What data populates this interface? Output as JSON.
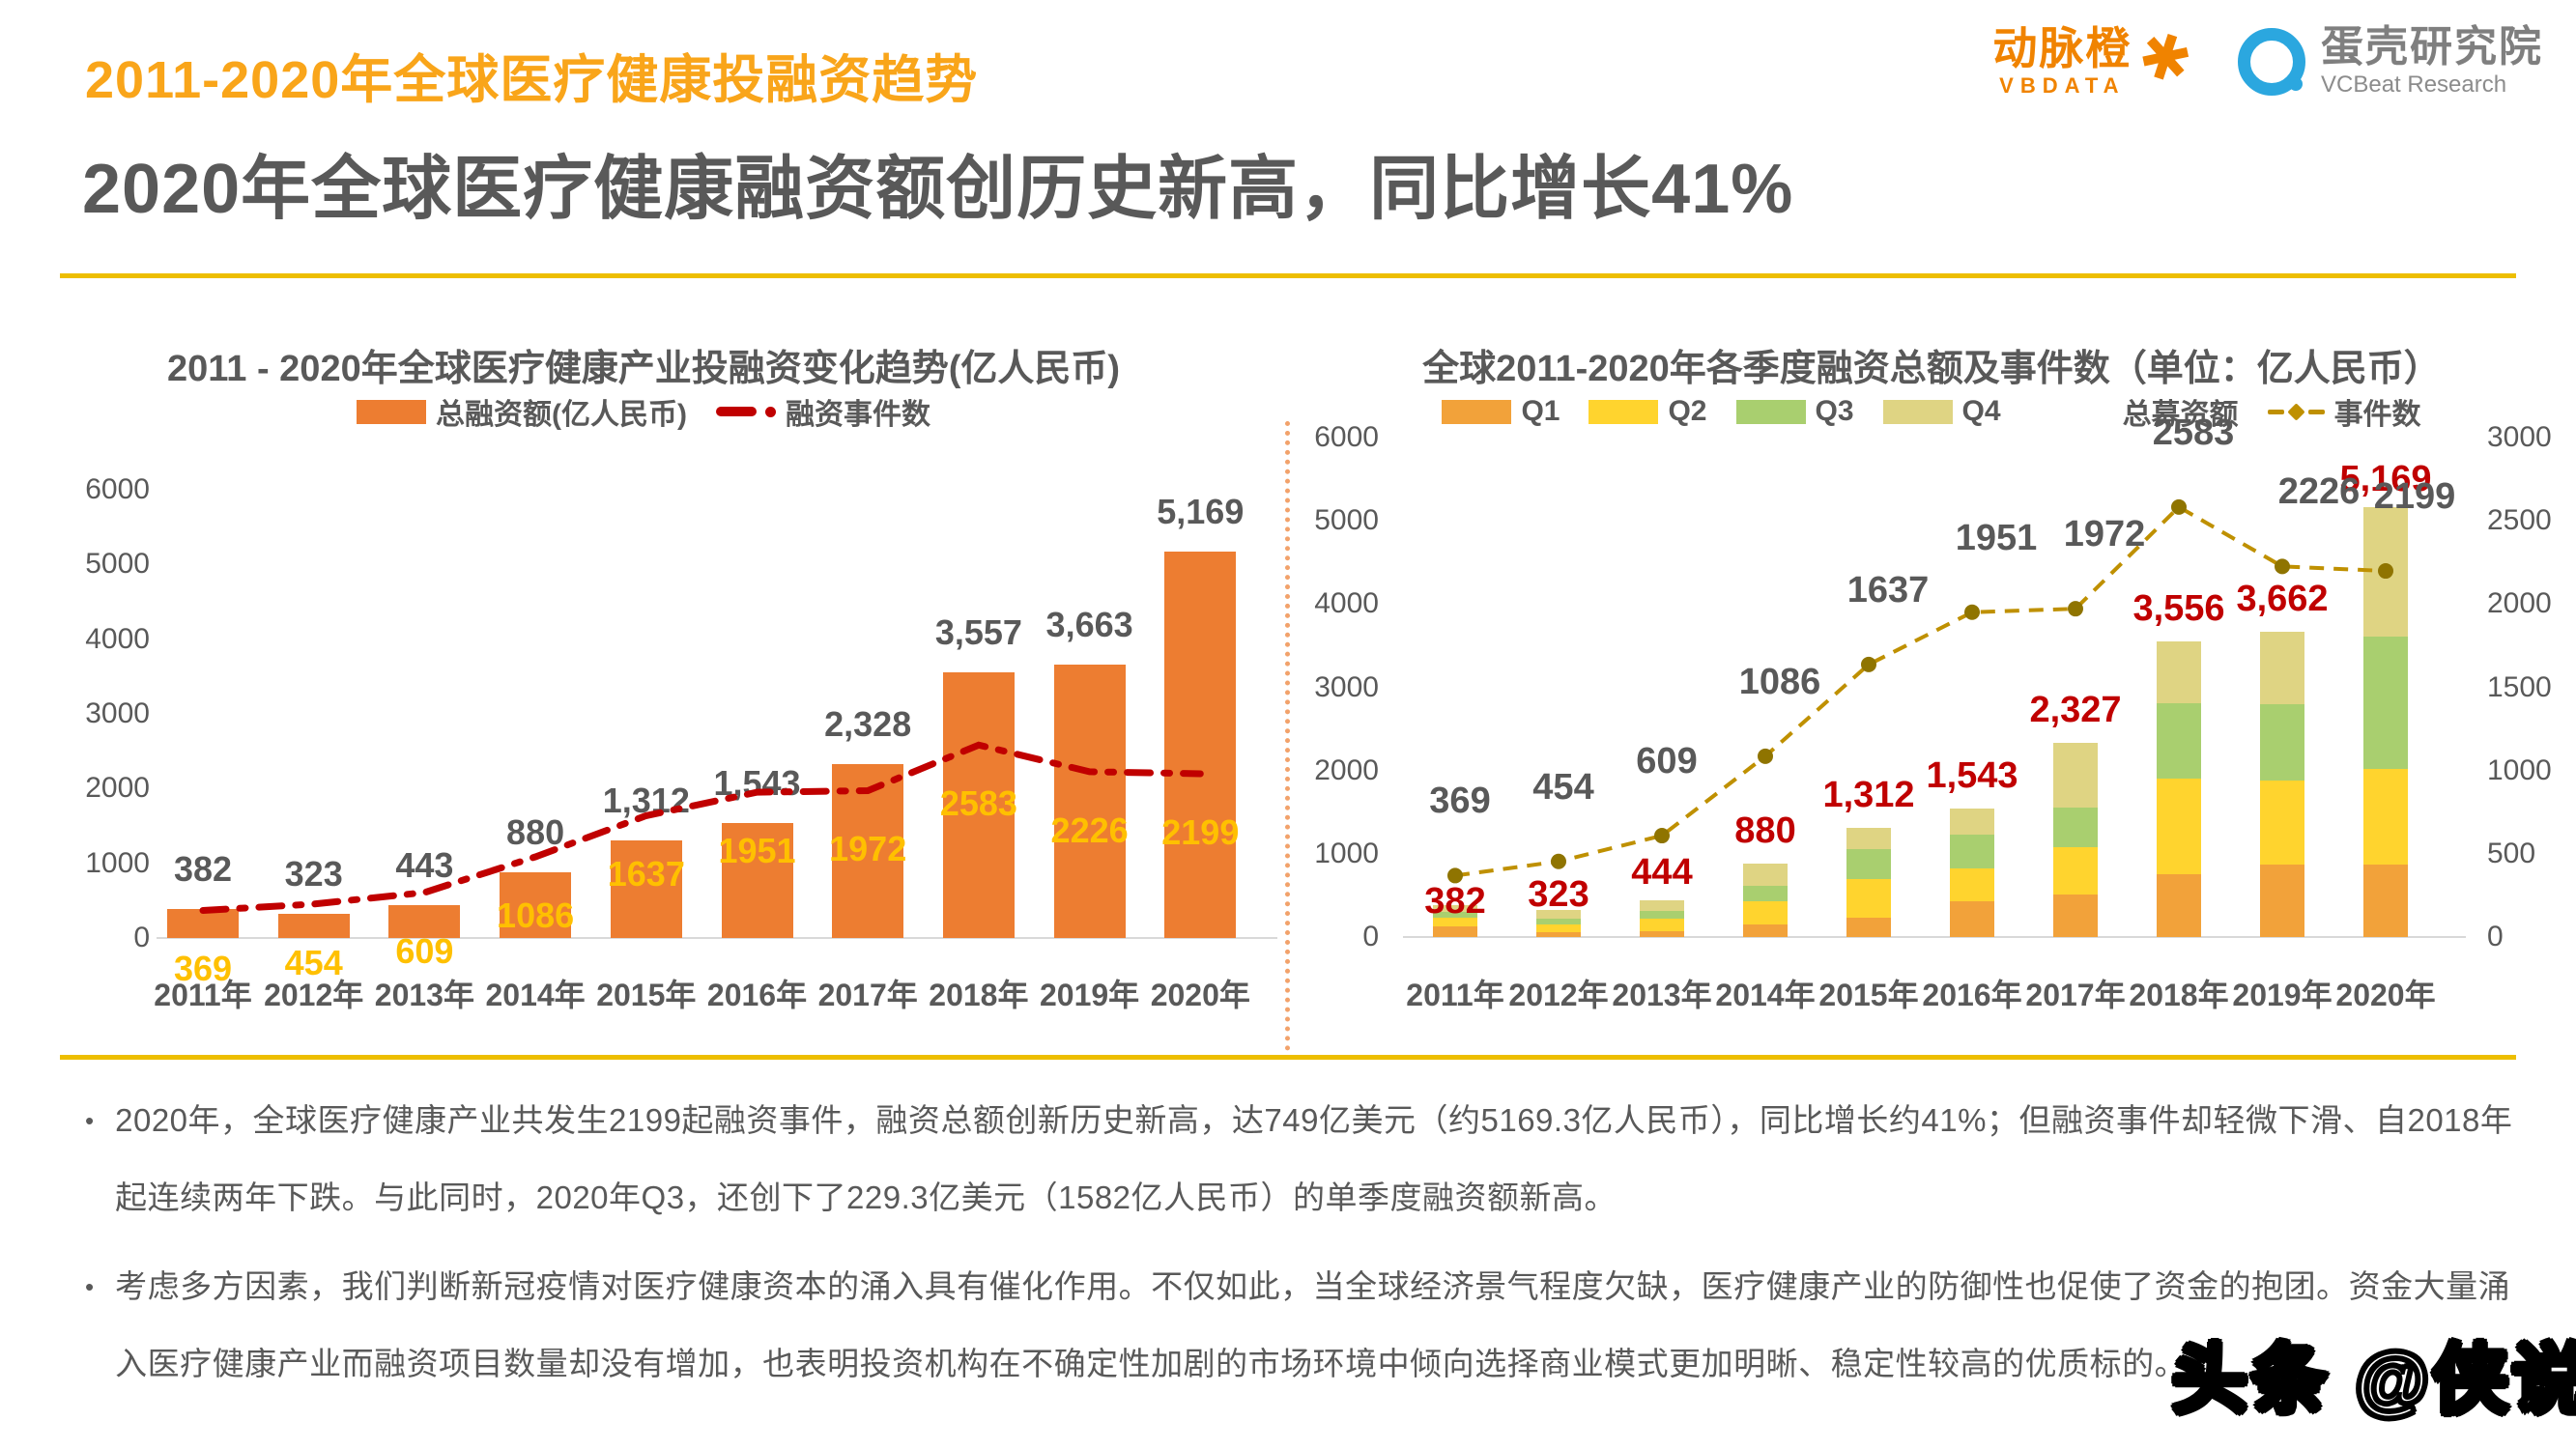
{
  "page": {
    "kicker": "2011-2020年全球医疗健康投融资趋势",
    "headline": "2020年全球医疗健康融资额创历史新高，同比增长41%",
    "watermark": "头条 @侠说"
  },
  "logos": {
    "vbdata": {
      "cn": "动脉橙",
      "en": "VBDATA"
    },
    "vcbeat": {
      "cn": "蛋壳研究院",
      "en": "VCBeat Research"
    }
  },
  "bullets": [
    "2020年，全球医疗健康产业共发生2199起融资事件，融资总额创新历史新高，达749亿美元（约5169.3亿人民币），同比增长约41%；但融资事件却轻微下滑、自2018年起连续两年下跌。与此同时，2020年Q3，还创下了229.3亿美元（1582亿人民币）的单季度融资额新高。",
    "考虑多方因素，我们判断新冠疫情对医疗健康资本的涌入具有催化作用。不仅如此，当全球经济景气程度欠缺，医疗健康产业的防御性也促使了资金的抱团。资金大量涌入医疗健康产业而融资项目数量却没有增加，也表明投资机构在不确定性加剧的市场环境中倾向选择商业模式更加明晰、稳定性较高的优质标的。"
  ],
  "colors": {
    "kicker_orange": "#F9A51A",
    "gold_rule": "#EDBE00",
    "text_gray": "#595959",
    "bar_orange": "#ED7D31",
    "line_red": "#C00000",
    "label_yellow": "#FFC000",
    "q1_orange": "#F2A23A",
    "q2_yellow": "#FFD42E",
    "q3_green": "#A9CF6F",
    "q4_khaki": "#DFD483",
    "line_olive": "#BF9000",
    "logo_orange": "#F08300",
    "logo_blue": "#2BA7DF"
  },
  "chart_data": [
    {
      "type": "bar",
      "title": "2011 - 2020年全球医疗健康产业投融资变化趋势(亿人民币)",
      "categories": [
        "2011年",
        "2012年",
        "2013年",
        "2014年",
        "2015年",
        "2016年",
        "2017年",
        "2018年",
        "2019年",
        "2020年"
      ],
      "ylim": [
        0,
        6000
      ],
      "ytick_step": 1000,
      "grid": false,
      "legend_position": "top",
      "series": [
        {
          "name": "总融资额(亿人民币)",
          "type": "bar",
          "color": "#ED7D31",
          "label_color": "#595959",
          "values": [
            382,
            323,
            443,
            880,
            1312,
            1543,
            2328,
            3557,
            3663,
            5169
          ],
          "labels": [
            "382",
            "323",
            "443",
            "880",
            "1,312",
            "1,543",
            "2,328",
            "3,557",
            "3,663",
            "5,169"
          ]
        },
        {
          "name": "融资事件数",
          "type": "line",
          "style": "dash-dot",
          "color": "#C00000",
          "label_color": "#FFC000",
          "values": [
            369,
            454,
            609,
            1086,
            1637,
            1951,
            1972,
            2583,
            2226,
            2199
          ],
          "labels": [
            "369",
            "454",
            "609",
            "1086",
            "1637",
            "1951",
            "1972",
            "2583",
            "2226",
            "2199"
          ]
        }
      ]
    },
    {
      "type": "stacked-bar",
      "title": "全球2011-2020年各季度融资总额及事件数（单位：亿人民币）",
      "categories": [
        "2011年",
        "2012年",
        "2013年",
        "2014年",
        "2015年",
        "2016年",
        "2017年",
        "2018年",
        "2019年",
        "2020年"
      ],
      "ylim_left": [
        0,
        6000
      ],
      "ytick_step_left": 1000,
      "ylim_right": [
        0,
        3000
      ],
      "ytick_step_right": 500,
      "grid": false,
      "legend_position": "top",
      "quarter_values_estimated_from_pixels": true,
      "series": [
        {
          "name": "Q1",
          "color": "#F2A23A",
          "values": [
            130,
            60,
            65,
            150,
            230,
            430,
            510,
            760,
            870,
            874
          ]
        },
        {
          "name": "Q2",
          "color": "#FFD42E",
          "values": [
            100,
            95,
            150,
            280,
            470,
            390,
            570,
            1140,
            1010,
            1151
          ]
        },
        {
          "name": "Q3",
          "color": "#A9CF6F",
          "values": [
            70,
            60,
            95,
            190,
            360,
            410,
            480,
            910,
            920,
            1582
          ]
        },
        {
          "name": "Q4",
          "color": "#DFD483",
          "values": [
            82,
            108,
            134,
            260,
            252,
            313,
            767,
            746,
            862,
            1562
          ]
        }
      ],
      "totals": {
        "name": "总募资额",
        "label_color": "#C00000",
        "values": [
          382,
          323,
          444,
          880,
          1312,
          1543,
          2327,
          3556,
          3662,
          5169
        ],
        "labels": [
          "382",
          "323",
          "444",
          "880",
          "1,312",
          "1,543",
          "2,327",
          "3,556",
          "3,662",
          "5,169"
        ]
      },
      "line": {
        "name": "事件数",
        "axis": "right",
        "color": "#BF9000",
        "marker_color": "#8F7400",
        "label_color": "#595959",
        "values": [
          369,
          454,
          609,
          1086,
          1637,
          1951,
          1972,
          2583,
          2226,
          2199
        ],
        "labels": [
          "369",
          "454",
          "609",
          "1086",
          "1637",
          "1951",
          "1972",
          "2583",
          "2226",
          "2199"
        ]
      }
    }
  ]
}
